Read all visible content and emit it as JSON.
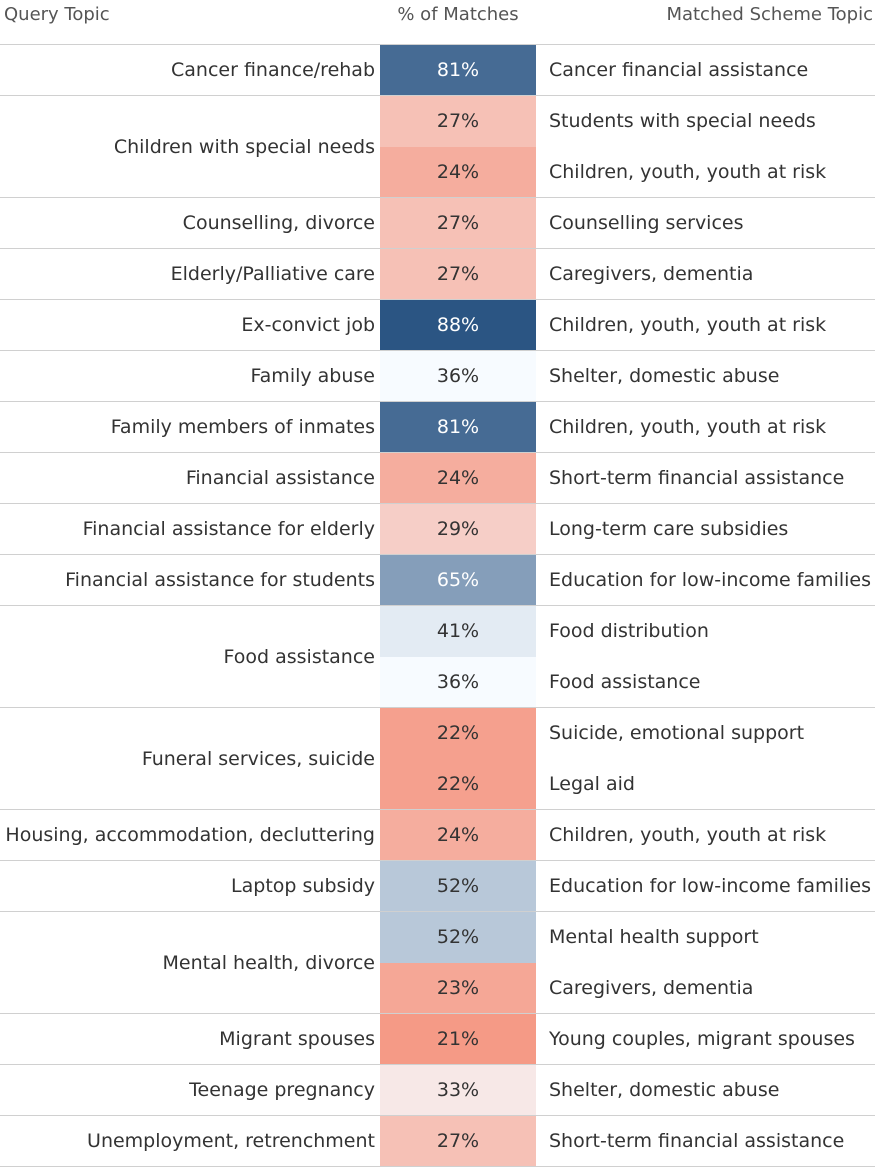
{
  "headers": {
    "query_topic": "Query Topic",
    "pct": "% of Matches",
    "scheme_topic": "Matched Scheme Topic"
  },
  "colors": {
    "scale_low": "#f59a86",
    "scale_mid": "#f7fbff",
    "scale_high": "#2b5583",
    "text_light": "#ffffff",
    "text_dark": "#333333"
  },
  "chart_data": {
    "type": "table",
    "columns": [
      "Query Topic",
      "% of Matches",
      "Matched Scheme Topic"
    ],
    "groups": [
      {
        "query": "Cancer finance/rehab",
        "matches": [
          {
            "pct": 81,
            "label": "81%",
            "scheme": "Cancer financial assistance"
          }
        ]
      },
      {
        "query": "Children with special needs",
        "matches": [
          {
            "pct": 27,
            "label": "27%",
            "scheme": "Students with special needs"
          },
          {
            "pct": 24,
            "label": "24%",
            "scheme": "Children, youth, youth at risk"
          }
        ]
      },
      {
        "query": "Counselling, divorce",
        "matches": [
          {
            "pct": 27,
            "label": "27%",
            "scheme": "Counselling services"
          }
        ]
      },
      {
        "query": "Elderly/Palliative care",
        "matches": [
          {
            "pct": 27,
            "label": "27%",
            "scheme": "Caregivers, dementia"
          }
        ]
      },
      {
        "query": "Ex-convict job",
        "matches": [
          {
            "pct": 88,
            "label": "88%",
            "scheme": "Children, youth, youth at risk"
          }
        ]
      },
      {
        "query": "Family abuse",
        "matches": [
          {
            "pct": 36,
            "label": "36%",
            "scheme": "Shelter, domestic abuse"
          }
        ]
      },
      {
        "query": "Family members of inmates",
        "matches": [
          {
            "pct": 81,
            "label": "81%",
            "scheme": "Children, youth, youth at risk"
          }
        ]
      },
      {
        "query": "Financial assistance",
        "matches": [
          {
            "pct": 24,
            "label": "24%",
            "scheme": "Short-term financial assistance"
          }
        ]
      },
      {
        "query": "Financial assistance for elderly",
        "matches": [
          {
            "pct": 29,
            "label": "29%",
            "scheme": "Long-term care subsidies"
          }
        ]
      },
      {
        "query": "Financial assistance for students",
        "matches": [
          {
            "pct": 65,
            "label": "65%",
            "scheme": "Education for low-income families"
          }
        ]
      },
      {
        "query": "Food assistance",
        "matches": [
          {
            "pct": 41,
            "label": "41%",
            "scheme": "Food distribution"
          },
          {
            "pct": 36,
            "label": "36%",
            "scheme": "Food assistance"
          }
        ]
      },
      {
        "query": "Funeral services, suicide",
        "matches": [
          {
            "pct": 22,
            "label": "22%",
            "scheme": "Suicide, emotional support"
          },
          {
            "pct": 22,
            "label": "22%",
            "scheme": "Legal aid"
          }
        ]
      },
      {
        "query": "Housing, accommodation, decluttering",
        "matches": [
          {
            "pct": 24,
            "label": "24%",
            "scheme": "Children, youth, youth at risk"
          }
        ]
      },
      {
        "query": "Laptop subsidy",
        "matches": [
          {
            "pct": 52,
            "label": "52%",
            "scheme": "Education for low-income families"
          }
        ]
      },
      {
        "query": "Mental health, divorce",
        "matches": [
          {
            "pct": 52,
            "label": "52%",
            "scheme": "Mental health support"
          },
          {
            "pct": 23,
            "label": "23%",
            "scheme": "Caregivers, dementia"
          }
        ]
      },
      {
        "query": "Migrant spouses",
        "matches": [
          {
            "pct": 21,
            "label": "21%",
            "scheme": "Young couples, migrant spouses"
          }
        ]
      },
      {
        "query": "Teenage pregnancy",
        "matches": [
          {
            "pct": 33,
            "label": "33%",
            "scheme": "Shelter, domestic abuse"
          }
        ]
      },
      {
        "query": "Unemployment, retrenchment",
        "matches": [
          {
            "pct": 27,
            "label": "27%",
            "scheme": "Short-term financial assistance"
          }
        ]
      }
    ]
  }
}
